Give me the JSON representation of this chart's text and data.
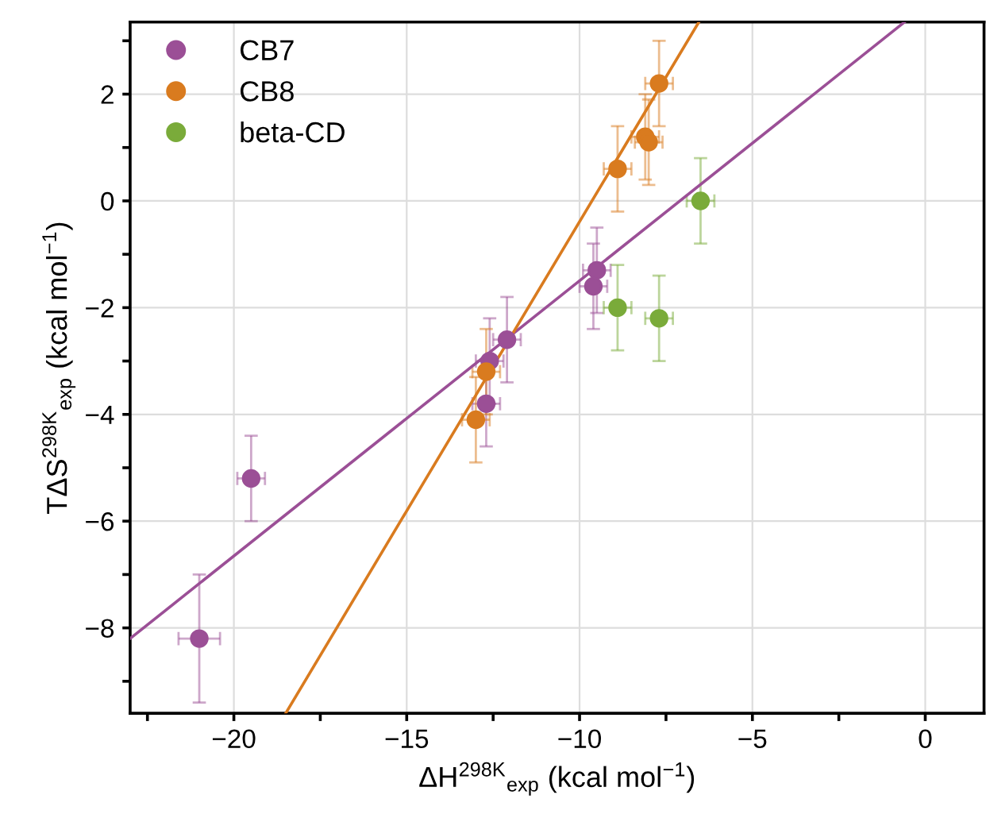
{
  "chart_data": {
    "type": "scatter",
    "xlabel": "ΔH$^{298K}$$_{exp}$ (kcal mol$^{−1}$)",
    "ylabel": "TΔS$^{298K}$$_{exp}$ (kcal mol$^{−1}$)",
    "xlim": [
      -23,
      1.7
    ],
    "ylim": [
      -9.6,
      3.35
    ],
    "xticks": [
      {
        "value": -22.5,
        "label": null
      },
      {
        "value": -20,
        "label": "−20"
      },
      {
        "value": -17.5,
        "label": null
      },
      {
        "value": -15,
        "label": "−15"
      },
      {
        "value": -12.5,
        "label": null
      },
      {
        "value": -10,
        "label": "−10"
      },
      {
        "value": -7.5,
        "label": null
      },
      {
        "value": -5,
        "label": "−5"
      },
      {
        "value": -2.5,
        "label": null
      },
      0
    ],
    "yticks": [
      {
        "value": -9,
        "label": null
      },
      {
        "value": -8,
        "label": "−8"
      },
      {
        "value": -7,
        "label": null
      },
      {
        "value": -6,
        "label": "−6"
      },
      {
        "value": -5,
        "label": null
      },
      {
        "value": -4,
        "label": "−4"
      },
      {
        "value": -3,
        "label": null
      },
      {
        "value": -2,
        "label": "−2"
      },
      {
        "value": -1,
        "label": null
      },
      0,
      {
        "value": 1,
        "label": null
      },
      2,
      {
        "value": 3,
        "label": null
      }
    ],
    "grid": true,
    "legend": "top left",
    "series": [
      {
        "name": "CB7",
        "color": "#9b4f96",
        "marker": "circle",
        "x": [
          -21,
          -19.5,
          -12.7,
          -12.6,
          -12.1,
          -9.6,
          -9.5
        ],
        "values": [
          -8.2,
          -5.2,
          -3.8,
          -3.0,
          -2.6,
          -1.6,
          -1.3
        ],
        "errors": [
          1.2,
          0.8,
          0.8,
          0.8,
          0.8,
          0.8,
          0.8
        ],
        "xerrors": [
          0.6,
          0.4,
          0.4,
          0.4,
          0.4,
          0.4,
          0.4
        ]
      },
      {
        "name": "CB8",
        "color": "#d97b1f",
        "marker": "circle",
        "x": [
          -13.0,
          -12.7,
          -8.9,
          -8.1,
          -8.0,
          -7.7
        ],
        "values": [
          -4.1,
          -3.2,
          0.6,
          1.2,
          1.1,
          2.2
        ],
        "errors": [
          0.8,
          0.8,
          0.8,
          0.8,
          0.8,
          0.8
        ],
        "xerrors": [
          0.4,
          0.4,
          0.4,
          0.4,
          0.4,
          0.4
        ]
      },
      {
        "name": "beta-CD",
        "color": "#7aab3a",
        "marker": "circle",
        "x": [
          -8.9,
          -7.7,
          -6.5
        ],
        "values": [
          -2.0,
          -2.2,
          0.0
        ],
        "errors": [
          0.8,
          0.8,
          0.8
        ],
        "xerrors": [
          0.4,
          0.4,
          0.4
        ]
      },
      {
        "type": "line",
        "color": "#9b4f96",
        "x": [
          -23,
          -0.6
        ],
        "values": [
          -8.2,
          3.35
        ]
      },
      {
        "type": "line",
        "color": "#d97b1f",
        "x": [
          -18.5,
          -6.55
        ],
        "values": [
          -9.6,
          3.35
        ]
      }
    ]
  }
}
